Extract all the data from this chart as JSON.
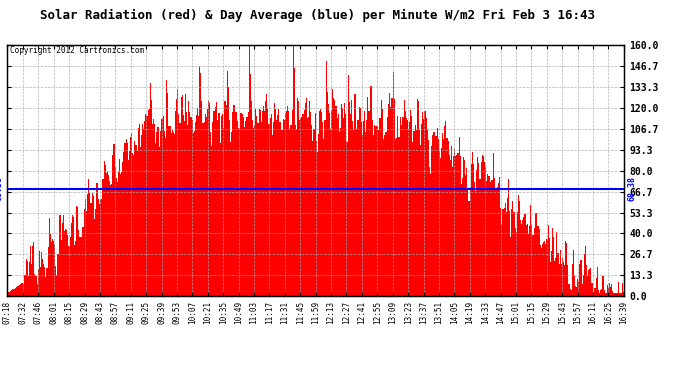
{
  "title": "Solar Radiation (red) & Day Average (blue) per Minute W/m2 Fri Feb 3 16:43",
  "copyright": "Copyright 2012 Cartronics.com",
  "y_min": 0.0,
  "y_max": 160.0,
  "y_ticks": [
    0.0,
    13.3,
    26.7,
    40.0,
    53.3,
    66.7,
    80.0,
    93.3,
    106.7,
    120.0,
    133.3,
    146.7,
    160.0
  ],
  "day_average": 68.38,
  "avg_label": "68.38",
  "background_color": "#ffffff",
  "fill_color": "#ff0000",
  "line_color": "#0000ff",
  "grid_color": "#aaaaaa",
  "x_tick_labels": [
    "07:18",
    "07:32",
    "07:46",
    "08:01",
    "08:15",
    "08:29",
    "08:43",
    "08:57",
    "09:11",
    "09:25",
    "09:39",
    "09:53",
    "10:07",
    "10:21",
    "10:35",
    "10:49",
    "11:03",
    "11:17",
    "11:31",
    "11:45",
    "11:59",
    "12:13",
    "12:27",
    "12:41",
    "12:55",
    "13:09",
    "13:23",
    "13:37",
    "13:51",
    "14:05",
    "14:19",
    "14:33",
    "14:47",
    "15:01",
    "15:15",
    "15:29",
    "15:43",
    "15:57",
    "16:11",
    "16:25",
    "16:39"
  ]
}
